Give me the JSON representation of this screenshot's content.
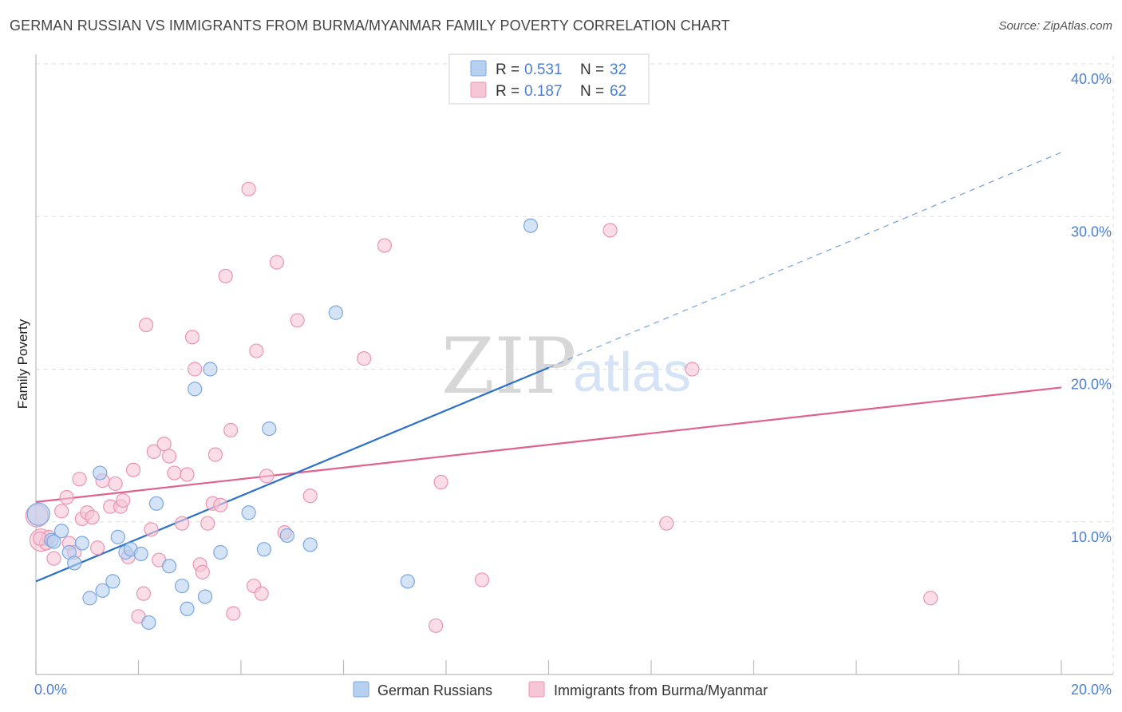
{
  "title": "GERMAN RUSSIAN VS IMMIGRANTS FROM BURMA/MYANMAR FAMILY POVERTY CORRELATION CHART",
  "source": "Source: ZipAtlas.com",
  "watermark": {
    "zip": "ZIP",
    "atlas": "atlas"
  },
  "colors": {
    "blue": "#2a6fce",
    "blue_fill": "#b8d0f0",
    "blue_stroke": "#7aa7e0",
    "pink": "#e0608e",
    "pink_fill": "#f6c6d6",
    "pink_stroke": "#ec94b2",
    "tick_label": "#4a7fd4",
    "grid": "#dddddd"
  },
  "legend": {
    "row1": {
      "r_label": "R =",
      "r_value": "0.531",
      "n_label": "N =",
      "n_value": "32"
    },
    "row2": {
      "r_label": "R =",
      "r_value": "0.187",
      "n_label": "N =",
      "n_value": "62"
    }
  },
  "chart_data": {
    "type": "scatter",
    "title": "GERMAN RUSSIAN VS IMMIGRANTS FROM BURMA/MYANMAR FAMILY POVERTY CORRELATION CHART",
    "xlabel": "",
    "ylabel": "Family Poverty",
    "xlim": [
      0,
      20
    ],
    "ylim": [
      0,
      40
    ],
    "x_tick_labels": [
      {
        "value": 0,
        "label": "0.0%"
      },
      {
        "value": 20,
        "label": "20.0%"
      }
    ],
    "y_tick_labels": [
      {
        "value": 10,
        "label": "10.0%"
      },
      {
        "value": 20,
        "label": "20.0%"
      },
      {
        "value": 30,
        "label": "30.0%"
      },
      {
        "value": 40,
        "label": "40.0%"
      }
    ],
    "x_minor_ticks": [
      0,
      2,
      4,
      6,
      8,
      10,
      12,
      14,
      16,
      18,
      20
    ],
    "y_gridlines": [
      10,
      20,
      30,
      40
    ],
    "legend_position": "top-center",
    "series": [
      {
        "name": "German Russians",
        "color": "blue",
        "R": 0.531,
        "N": 32,
        "trend": {
          "x0": 0,
          "y0": 6.1,
          "x1": 10,
          "y1": 20.1,
          "dashed_to_x": 20,
          "dashed_to_y": 34.2
        },
        "points": [
          [
            0.05,
            10.5,
            "large"
          ],
          [
            0.3,
            8.8
          ],
          [
            0.35,
            8.7
          ],
          [
            0.5,
            9.4
          ],
          [
            0.65,
            8.0
          ],
          [
            0.75,
            7.3
          ],
          [
            0.9,
            8.6
          ],
          [
            1.05,
            5.0
          ],
          [
            1.25,
            13.2
          ],
          [
            1.3,
            5.5
          ],
          [
            1.5,
            6.1
          ],
          [
            1.6,
            9.0
          ],
          [
            1.75,
            8.0
          ],
          [
            1.85,
            8.2
          ],
          [
            2.05,
            7.9
          ],
          [
            2.35,
            11.2
          ],
          [
            2.6,
            7.1
          ],
          [
            2.85,
            5.8
          ],
          [
            2.95,
            4.3
          ],
          [
            3.1,
            18.7
          ],
          [
            3.3,
            5.1
          ],
          [
            3.4,
            20.0
          ],
          [
            3.6,
            8.0
          ],
          [
            4.15,
            10.6
          ],
          [
            4.45,
            8.2
          ],
          [
            4.55,
            16.1
          ],
          [
            4.9,
            9.1
          ],
          [
            5.35,
            8.5
          ],
          [
            5.85,
            23.7
          ],
          [
            7.25,
            6.1
          ],
          [
            2.2,
            3.4
          ],
          [
            9.65,
            29.4
          ]
        ]
      },
      {
        "name": "Immigrants from Burma/Myanmar",
        "color": "pink",
        "R": 0.187,
        "N": 62,
        "trend": {
          "x0": 0,
          "y0": 11.3,
          "x1": 20,
          "y1": 18.8
        },
        "points": [
          [
            0.02,
            10.4,
            "large"
          ],
          [
            0.1,
            8.8,
            "large"
          ],
          [
            0.2,
            8.6
          ],
          [
            0.25,
            9.0
          ],
          [
            0.35,
            7.6
          ],
          [
            0.5,
            10.7
          ],
          [
            0.6,
            11.6
          ],
          [
            0.65,
            8.6
          ],
          [
            0.75,
            8.0
          ],
          [
            0.85,
            12.8
          ],
          [
            0.9,
            10.2
          ],
          [
            1.0,
            10.6
          ],
          [
            1.1,
            10.3
          ],
          [
            1.2,
            8.3
          ],
          [
            1.3,
            12.7
          ],
          [
            1.45,
            11.0
          ],
          [
            1.55,
            12.5
          ],
          [
            1.65,
            11.0
          ],
          [
            1.7,
            11.4
          ],
          [
            1.8,
            7.7
          ],
          [
            1.9,
            13.4
          ],
          [
            2.0,
            3.8
          ],
          [
            2.1,
            5.3
          ],
          [
            2.15,
            22.9
          ],
          [
            2.25,
            9.5
          ],
          [
            2.3,
            14.6
          ],
          [
            2.4,
            7.5
          ],
          [
            2.5,
            15.1
          ],
          [
            2.6,
            14.3
          ],
          [
            2.7,
            13.2
          ],
          [
            2.85,
            9.9
          ],
          [
            2.95,
            13.1
          ],
          [
            3.05,
            22.1
          ],
          [
            3.1,
            20.0
          ],
          [
            3.2,
            7.2
          ],
          [
            3.25,
            6.7
          ],
          [
            3.35,
            9.9
          ],
          [
            3.45,
            11.2
          ],
          [
            3.5,
            14.4
          ],
          [
            3.6,
            11.1
          ],
          [
            3.7,
            26.1
          ],
          [
            3.8,
            16.0
          ],
          [
            3.85,
            4.0
          ],
          [
            4.15,
            31.8
          ],
          [
            4.25,
            5.8
          ],
          [
            4.3,
            21.2
          ],
          [
            4.4,
            5.3
          ],
          [
            4.5,
            13.0
          ],
          [
            4.7,
            27.0
          ],
          [
            4.85,
            9.3
          ],
          [
            5.1,
            23.2
          ],
          [
            5.35,
            11.7
          ],
          [
            6.4,
            20.7
          ],
          [
            6.8,
            28.1
          ],
          [
            7.8,
            3.2
          ],
          [
            7.9,
            12.6
          ],
          [
            8.7,
            6.2
          ],
          [
            11.2,
            29.1
          ],
          [
            12.3,
            9.9
          ],
          [
            12.8,
            20.0
          ],
          [
            17.45,
            5.0
          ],
          [
            0.08,
            8.9
          ]
        ]
      }
    ]
  },
  "bottom_legend": {
    "series1": "German Russians",
    "series2": "Immigrants from Burma/Myanmar"
  }
}
